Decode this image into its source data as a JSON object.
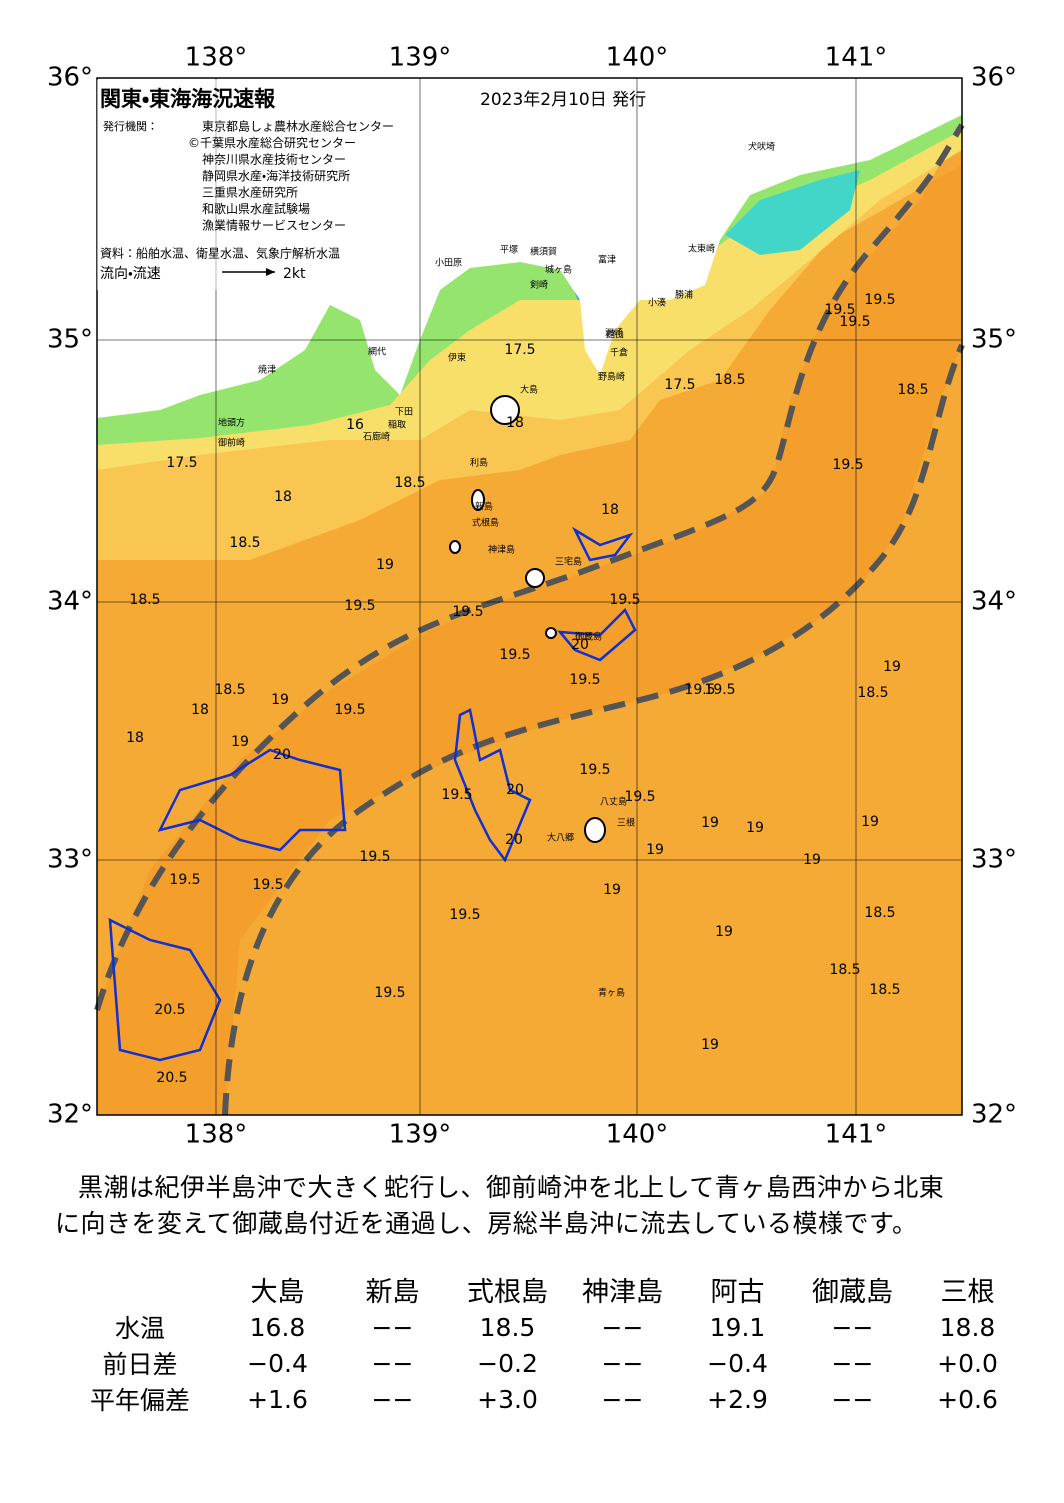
{
  "map": {
    "title": "関東・東海海況速報",
    "date": "2023年2月10日 発行",
    "issuer_label": "発行機関：",
    "issuers": [
      "東京都島しょ農林水産総合センター",
      "©千葉県水産総合研究センター",
      "神奈川県水産技術センター",
      "静岡県水産・海洋技術研究所",
      "三重県水産研究所",
      "和歌山県水産試験場",
      "漁業情報サービスセンター"
    ],
    "source": "資料：船舶水温、衛星水温、気象庁解析水温",
    "flow_label": "流向・流速",
    "flow_scale": "2kt",
    "lon_labels": [
      "138°",
      "139°",
      "140°",
      "141°"
    ],
    "lat_labels": [
      "36°",
      "35°",
      "34°",
      "33°",
      "32°"
    ],
    "places": [
      "犬吠埼",
      "太東崎",
      "小田原",
      "平塚",
      "横須賀",
      "城ヶ島",
      "剣崎",
      "富津",
      "洲崎",
      "野島崎",
      "勝浦",
      "小湊",
      "館山",
      "千倉",
      "大島",
      "利島",
      "新島",
      "式根島",
      "神津島",
      "三宅島",
      "御蔵島",
      "八丈島",
      "三根",
      "大八郷",
      "青ヶ島",
      "焼津",
      "御前崎",
      "地頭方",
      "石廊崎",
      "下田",
      "伊東",
      "網代",
      "稲取"
    ],
    "contours": [
      "19.5",
      "19.5",
      "19.5",
      "18.5",
      "18",
      "17.5",
      "17.5",
      "16",
      "18",
      "18.5",
      "18.5",
      "18",
      "19",
      "18.5",
      "19.5",
      "19.5",
      "19.5",
      "19.5",
      "20",
      "19.5",
      "19.5",
      "19.5",
      "19",
      "18.5",
      "18",
      "19",
      "20",
      "20",
      "19.5",
      "19.5",
      "19.5",
      "19.5",
      "20",
      "19.5",
      "19.5",
      "19.5",
      "19",
      "19",
      "19",
      "18.5",
      "19",
      "18.5",
      "18",
      "19",
      "19",
      "18.5",
      "20.5",
      "20.5",
      "19.5",
      "19",
      "19.5",
      "19",
      "18.5",
      "19.5",
      "17.5",
      "18.5",
      "19"
    ]
  },
  "caption": [
    "黒潮は紀伊半島沖で大きく蛇行し、御前崎沖を北上して青ヶ島西沖から北東",
    "に向きを変えて御蔵島付近を通過し、房総半島沖に流去している模様です。"
  ],
  "table": {
    "header": [
      "大島",
      "新島",
      "式根島",
      "神津島",
      "阿古",
      "御蔵島",
      "三根"
    ],
    "rows": [
      [
        "水温",
        "16.8",
        "−−",
        "18.5",
        "−−",
        "19.1",
        "−−",
        "18.8"
      ],
      [
        "前日差",
        "−0.4",
        "−−",
        "−0.2",
        "−−",
        "−0.4",
        "−−",
        "+0.0"
      ],
      [
        "平年偏差",
        "+1.6",
        "−−",
        "+3.0",
        "−−",
        "+2.9",
        "−−",
        "+0.6"
      ]
    ]
  }
}
